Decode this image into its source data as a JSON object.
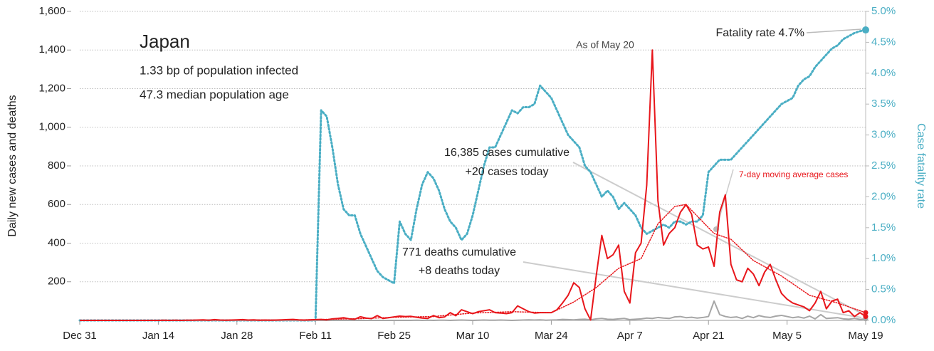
{
  "chart_data": {
    "type": "line",
    "title": "Japan",
    "annotations": {
      "infected": "1.33 bp of population infected",
      "age": "47.3 median population age",
      "as_of": "As of May 20",
      "fatality": "Fatality rate 4.7%",
      "cases_cum": "16,385 cases cumulative",
      "cases_today": "+20 cases today",
      "deaths_cum": "771 deaths cumulative",
      "deaths_today": "+8 deaths today",
      "ma_label": "7-day moving average cases"
    },
    "ylabel": "Daily new cases and deaths",
    "y2label": "Case fatality rate",
    "xlim": [
      0,
      140
    ],
    "ylim": [
      0,
      1600
    ],
    "y2lim": [
      0,
      5
    ],
    "grid": true,
    "xticks": [
      {
        "value": 0,
        "label": "Dec 31"
      },
      {
        "value": 14,
        "label": "Jan 14"
      },
      {
        "value": 28,
        "label": "Jan 28"
      },
      {
        "value": 42,
        "label": "Feb 11"
      },
      {
        "value": 56,
        "label": "Feb 25"
      },
      {
        "value": 70,
        "label": "Mar 10"
      },
      {
        "value": 84,
        "label": "Mar 24"
      },
      {
        "value": 98,
        "label": "Apr 7"
      },
      {
        "value": 112,
        "label": "Apr 21"
      },
      {
        "value": 126,
        "label": "May 5"
      },
      {
        "value": 140,
        "label": "May 19"
      }
    ],
    "yticks": [
      200,
      400,
      600,
      800,
      {
        "value": 1000,
        "label": "1,000"
      },
      {
        "value": 1200,
        "label": "1,200"
      },
      {
        "value": 1400,
        "label": "1,400"
      },
      {
        "value": 1600,
        "label": "1,600"
      }
    ],
    "y2ticks": [
      {
        "value": 0,
        "label": "0.0%"
      },
      {
        "value": 0.5,
        "label": "0.5%"
      },
      {
        "value": 1,
        "label": "1.0%"
      },
      {
        "value": 1.5,
        "label": "1.5%"
      },
      {
        "value": 2,
        "label": "2.0%"
      },
      {
        "value": 2.5,
        "label": "2.5%"
      },
      {
        "value": 3,
        "label": "3.0%"
      },
      {
        "value": 3.5,
        "label": "3.5%"
      },
      {
        "value": 4,
        "label": "4.0%"
      },
      {
        "value": 4.5,
        "label": "4.5%"
      },
      {
        "value": 5,
        "label": "5.0%"
      }
    ],
    "x": [
      0,
      1,
      2,
      3,
      4,
      5,
      6,
      7,
      8,
      9,
      10,
      11,
      12,
      13,
      14,
      15,
      16,
      17,
      18,
      19,
      20,
      21,
      22,
      23,
      24,
      25,
      26,
      27,
      28,
      29,
      30,
      31,
      32,
      33,
      34,
      35,
      36,
      37,
      38,
      39,
      40,
      41,
      42,
      43,
      44,
      45,
      46,
      47,
      48,
      49,
      50,
      51,
      52,
      53,
      54,
      55,
      56,
      57,
      58,
      59,
      60,
      61,
      62,
      63,
      64,
      65,
      66,
      67,
      68,
      69,
      70,
      71,
      72,
      73,
      74,
      75,
      76,
      77,
      78,
      79,
      80,
      81,
      82,
      83,
      84,
      85,
      86,
      87,
      88,
      89,
      90,
      91,
      92,
      93,
      94,
      95,
      96,
      97,
      98,
      99,
      100,
      101,
      102,
      103,
      104,
      105,
      106,
      107,
      108,
      109,
      110,
      111,
      112,
      113,
      114,
      115,
      116,
      117,
      118,
      119,
      120,
      121,
      122,
      123,
      124,
      125,
      126,
      127,
      128,
      129,
      130,
      131,
      132,
      133,
      134,
      135,
      136,
      137,
      138,
      139,
      140
    ],
    "series": [
      {
        "name": "Fatality rate",
        "color": "#4aaec4",
        "dash": "dotted",
        "axis": "y2",
        "values": [
          0,
          0,
          0,
          0,
          0,
          0,
          0,
          0,
          0,
          0,
          0,
          0,
          0,
          0,
          0,
          0,
          0,
          0,
          0,
          0,
          0,
          0,
          0,
          0,
          0,
          0,
          0,
          0,
          0,
          0,
          0,
          0,
          0,
          0,
          0,
          0,
          0,
          0,
          0,
          0,
          0,
          0,
          0,
          3.4,
          3.3,
          2.8,
          2.2,
          1.8,
          1.7,
          1.7,
          1.4,
          1.2,
          1.0,
          0.8,
          0.7,
          0.65,
          0.6,
          1.6,
          1.4,
          1.3,
          1.8,
          2.2,
          2.4,
          2.3,
          2.1,
          1.8,
          1.6,
          1.5,
          1.3,
          1.4,
          1.7,
          2.1,
          2.5,
          2.8,
          2.8,
          3.0,
          3.2,
          3.4,
          3.35,
          3.45,
          3.45,
          3.5,
          3.8,
          3.7,
          3.6,
          3.4,
          3.2,
          3.0,
          2.9,
          2.8,
          2.5,
          2.4,
          2.2,
          2.0,
          2.1,
          2.0,
          1.8,
          1.9,
          1.8,
          1.7,
          1.5,
          1.4,
          1.45,
          1.5,
          1.55,
          1.5,
          1.6,
          1.6,
          1.55,
          1.6,
          1.6,
          1.7,
          2.4,
          2.5,
          2.6,
          2.6,
          2.6,
          2.7,
          2.8,
          2.9,
          3.0,
          3.1,
          3.2,
          3.3,
          3.4,
          3.5,
          3.55,
          3.6,
          3.8,
          3.9,
          3.95,
          4.1,
          4.2,
          4.3,
          4.4,
          4.45,
          4.55,
          4.6,
          4.65,
          4.68,
          4.7
        ]
      },
      {
        "name": "Deaths",
        "color": "#a6a6a6",
        "dash": "solid",
        "values": [
          0,
          0,
          0,
          0,
          0,
          0,
          0,
          0,
          0,
          0,
          0,
          0,
          0,
          0,
          0,
          0,
          0,
          0,
          0,
          0,
          0,
          0,
          0,
          0,
          0,
          0,
          0,
          0,
          0,
          0,
          0,
          0,
          0,
          0,
          0,
          0,
          0,
          0,
          0,
          0,
          0,
          0,
          0,
          0,
          0,
          0,
          0,
          0,
          0,
          0,
          0,
          0,
          0,
          0,
          0,
          0,
          0,
          0,
          0,
          0,
          1,
          0,
          1,
          0,
          1,
          1,
          0,
          1,
          2,
          1,
          0,
          1,
          2,
          1,
          1,
          2,
          1,
          0,
          1,
          2,
          3,
          2,
          3,
          1,
          2,
          3,
          5,
          4,
          3,
          5,
          6,
          3,
          8,
          10,
          6,
          5,
          8,
          10,
          4,
          6,
          8,
          12,
          10,
          15,
          12,
          10,
          18,
          20,
          14,
          16,
          12,
          15,
          20,
          100,
          30,
          20,
          15,
          18,
          10,
          22,
          14,
          25,
          18,
          15,
          22,
          26,
          20,
          14,
          18,
          12,
          22,
          8,
          30,
          10,
          12,
          14,
          8,
          6,
          10,
          5,
          8
        ]
      },
      {
        "name": "7-day moving average cases",
        "color": "#e8161b",
        "dash": "dotted",
        "x": [
          3,
          10,
          20,
          30,
          40,
          50,
          56,
          63,
          70,
          77,
          84,
          88,
          92,
          96,
          100,
          103,
          106,
          108,
          110,
          113,
          116,
          120,
          125,
          130,
          135,
          140
        ],
        "values": [
          0,
          0,
          1,
          2,
          3,
          9,
          16,
          20,
          38,
          45,
          40,
          95,
          170,
          270,
          320,
          500,
          590,
          600,
          540,
          450,
          420,
          310,
          230,
          130,
          90,
          40
        ]
      },
      {
        "name": "Cases",
        "color": "#e8161b",
        "dash": "solid",
        "values": [
          0,
          0,
          0,
          0,
          0,
          0,
          0,
          0,
          0,
          0,
          0,
          0,
          0,
          0,
          0,
          1,
          0,
          1,
          0,
          1,
          1,
          2,
          3,
          1,
          4,
          2,
          1,
          2,
          3,
          4,
          2,
          3,
          1,
          2,
          1,
          2,
          3,
          4,
          5,
          3,
          2,
          3,
          4,
          5,
          3,
          8,
          10,
          14,
          8,
          6,
          19,
          12,
          9,
          25,
          10,
          14,
          18,
          22,
          20,
          21,
          16,
          12,
          10,
          25,
          14,
          18,
          40,
          24,
          55,
          45,
          35,
          45,
          50,
          55,
          40,
          38,
          35,
          40,
          75,
          60,
          45,
          38,
          40,
          40,
          40,
          55,
          90,
          130,
          195,
          170,
          60,
          2,
          230,
          440,
          320,
          340,
          390,
          150,
          90,
          350,
          400,
          700,
          1400,
          620,
          390,
          450,
          480,
          560,
          600,
          550,
          390,
          370,
          380,
          280,
          560,
          650,
          290,
          210,
          200,
          270,
          240,
          180,
          250,
          290,
          210,
          140,
          110,
          90,
          80,
          70,
          50,
          90,
          150,
          60,
          100,
          110,
          40,
          50,
          20,
          40,
          20
        ]
      }
    ]
  }
}
